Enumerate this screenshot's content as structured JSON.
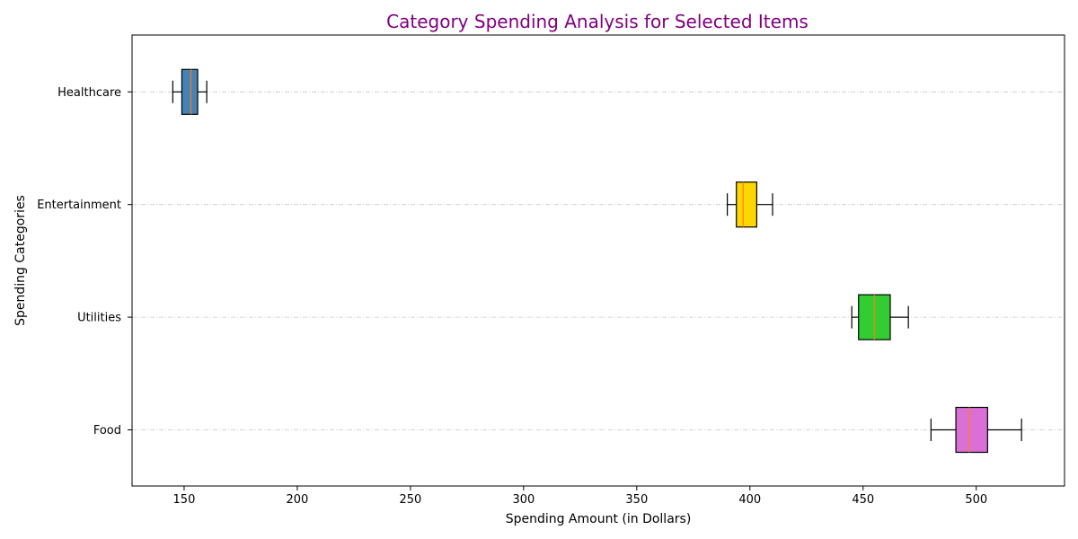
{
  "chart_data": {
    "type": "boxplot",
    "orientation": "horizontal",
    "title": "Category Spending Analysis for Selected Items",
    "xlabel": "Spending Amount (in Dollars)",
    "ylabel": "Spending Categories",
    "xlim": [
      127,
      539
    ],
    "x_ticks": [
      150,
      200,
      250,
      300,
      350,
      400,
      450,
      500
    ],
    "grid": "y-dashed",
    "title_color": "#800080",
    "median_color": "#FF7F0E",
    "categories": [
      "Food",
      "Utilities",
      "Entertainment",
      "Healthcare"
    ],
    "boxes": [
      {
        "category": "Food",
        "whisker_low": 480,
        "q1": 491,
        "median": 497,
        "q3": 505,
        "whisker_high": 520,
        "color": "#DA70D6"
      },
      {
        "category": "Utilities",
        "whisker_low": 445,
        "q1": 448,
        "median": 455,
        "q3": 462,
        "whisker_high": 470,
        "color": "#32CD32"
      },
      {
        "category": "Entertainment",
        "whisker_low": 390,
        "q1": 394,
        "median": 397,
        "q3": 403,
        "whisker_high": 410,
        "color": "#FFD700"
      },
      {
        "category": "Healthcare",
        "whisker_low": 145,
        "q1": 149,
        "median": 153,
        "q3": 156,
        "whisker_high": 160,
        "color": "#4682B4"
      }
    ]
  }
}
